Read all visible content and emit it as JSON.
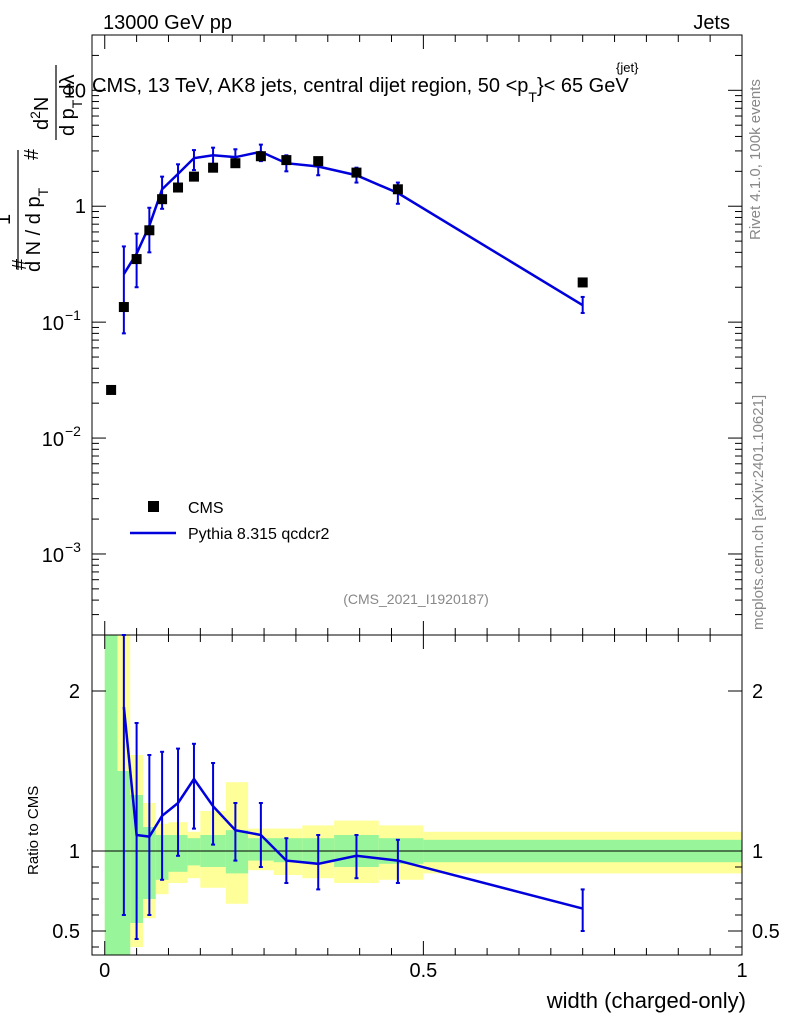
{
  "header": {
    "left": "13000 GeV pp",
    "right": "Jets",
    "title_main": "CMS, 13 TeV, AK8 jets, central dijet region, 50 <p",
    "title_sub": "T",
    "title_sup": "{jet}",
    "title_end": "}< 65 GeV"
  },
  "side": {
    "rivet": "Rivet 4.1.0,  100k events",
    "mcplots": "mcplots.cern.ch [arXiv:2401.10621]"
  },
  "analysis_id": "(CMS_2021_I1920187)",
  "ylabel_parts": {
    "hash": "#",
    "one": "1",
    "dN": "d N / d p",
    "T": "T",
    "d2N": "d",
    "two": "2",
    "N": "N",
    "dpT": "d p",
    "dlambda": "dλ"
  },
  "ratio_ylabel": "Ratio to CMS",
  "xlabel": "width (charged-only)",
  "legend": {
    "data": "CMS",
    "mc": "Pythia 8.315 qcdcr2"
  },
  "colors": {
    "mc": "#0000dd",
    "band_inner": "#99f599",
    "band_outer": "#ffff99",
    "data": "#000000"
  },
  "chart_data": [
    {
      "type": "scatter",
      "name": "main",
      "yscale": "log",
      "ylim": [
        0.0002,
        30
      ],
      "xlim": [
        -0.02,
        1.0
      ],
      "yticks": [
        {
          "value": 0.001,
          "base": "10",
          "exp": "−3"
        },
        {
          "value": 0.01,
          "base": "10",
          "exp": "−2"
        },
        {
          "value": 0.1,
          "base": "10",
          "exp": "−1"
        },
        {
          "value": 1,
          "label": "1"
        },
        {
          "value": 10,
          "label": "10"
        }
      ],
      "series": [
        {
          "name": "CMS",
          "x": [
            0.01,
            0.03,
            0.05,
            0.07,
            0.09,
            0.115,
            0.14,
            0.17,
            0.205,
            0.245,
            0.285,
            0.335,
            0.395,
            0.46,
            0.75
          ],
          "values": [
            0.026,
            0.135,
            0.35,
            0.62,
            1.15,
            1.45,
            1.8,
            2.15,
            2.35,
            2.7,
            2.5,
            2.45,
            1.95,
            1.4,
            0.22
          ]
        },
        {
          "name": "Pythia 8.315 qcdcr2",
          "x": [
            0.03,
            0.05,
            0.07,
            0.09,
            0.115,
            0.14,
            0.17,
            0.205,
            0.245,
            0.285,
            0.335,
            0.395,
            0.46,
            0.75
          ],
          "values": [
            0.26,
            0.39,
            0.68,
            1.4,
            1.9,
            2.6,
            2.75,
            2.65,
            2.95,
            2.35,
            2.2,
            1.85,
            1.3,
            0.14
          ],
          "err_lo": [
            0.08,
            0.2,
            0.4,
            0.95,
            1.4,
            2.05,
            2.25,
            2.2,
            2.45,
            2.0,
            1.85,
            1.6,
            1.05,
            0.12
          ],
          "err_hi": [
            0.45,
            0.58,
            0.97,
            1.8,
            2.3,
            3.05,
            3.2,
            3.1,
            3.4,
            2.75,
            2.55,
            2.15,
            1.6,
            0.165
          ]
        }
      ]
    },
    {
      "type": "line",
      "name": "ratio",
      "ylim": [
        0.35,
        2.35
      ],
      "xlim": [
        -0.02,
        1.0
      ],
      "xticks": [
        0,
        0.5,
        1
      ],
      "xtick_labels": [
        "0",
        "0.5",
        "1"
      ],
      "yticks": [
        0.5,
        1,
        2
      ],
      "ytick_labels": [
        "0.5",
        "1",
        "2"
      ],
      "bins": [
        {
          "x0": 0.0,
          "x1": 0.02,
          "in_lo": 0.35,
          "in_hi": 2.35,
          "out_lo": 0.35,
          "out_hi": 2.35
        },
        {
          "x0": 0.02,
          "x1": 0.04,
          "in_lo": 0.35,
          "in_hi": 1.5,
          "out_lo": 0.35,
          "out_hi": 2.35
        },
        {
          "x0": 0.04,
          "x1": 0.06,
          "in_lo": 0.55,
          "in_hi": 1.35,
          "out_lo": 0.4,
          "out_hi": 1.6
        },
        {
          "x0": 0.06,
          "x1": 0.08,
          "in_lo": 0.7,
          "in_hi": 1.15,
          "out_lo": 0.58,
          "out_hi": 1.3
        },
        {
          "x0": 0.08,
          "x1": 0.1,
          "in_lo": 0.82,
          "in_hi": 1.1,
          "out_lo": 0.73,
          "out_hi": 1.17
        },
        {
          "x0": 0.1,
          "x1": 0.13,
          "in_lo": 0.87,
          "in_hi": 1.1,
          "out_lo": 0.8,
          "out_hi": 1.18
        },
        {
          "x0": 0.13,
          "x1": 0.15,
          "in_lo": 0.91,
          "in_hi": 1.08,
          "out_lo": 0.83,
          "out_hi": 1.12
        },
        {
          "x0": 0.15,
          "x1": 0.19,
          "in_lo": 0.9,
          "in_hi": 1.1,
          "out_lo": 0.77,
          "out_hi": 1.25
        },
        {
          "x0": 0.19,
          "x1": 0.225,
          "in_lo": 0.86,
          "in_hi": 1.13,
          "out_lo": 0.67,
          "out_hi": 1.43
        },
        {
          "x0": 0.225,
          "x1": 0.265,
          "in_lo": 0.94,
          "in_hi": 1.08,
          "out_lo": 0.88,
          "out_hi": 1.14
        },
        {
          "x0": 0.265,
          "x1": 0.31,
          "in_lo": 0.93,
          "in_hi": 1.08,
          "out_lo": 0.85,
          "out_hi": 1.14
        },
        {
          "x0": 0.31,
          "x1": 0.36,
          "in_lo": 0.93,
          "in_hi": 1.08,
          "out_lo": 0.83,
          "out_hi": 1.16
        },
        {
          "x0": 0.36,
          "x1": 0.43,
          "in_lo": 0.9,
          "in_hi": 1.1,
          "out_lo": 0.8,
          "out_hi": 1.19
        },
        {
          "x0": 0.43,
          "x1": 0.5,
          "in_lo": 0.92,
          "in_hi": 1.08,
          "out_lo": 0.82,
          "out_hi": 1.16
        },
        {
          "x0": 0.5,
          "x1": 1.0,
          "in_lo": 0.93,
          "in_hi": 1.07,
          "out_lo": 0.86,
          "out_hi": 1.12
        }
      ],
      "series": [
        {
          "name": "Pythia 8.315 qcdcr2 / CMS",
          "x": [
            0.03,
            0.05,
            0.07,
            0.09,
            0.115,
            0.14,
            0.17,
            0.205,
            0.245,
            0.285,
            0.335,
            0.395,
            0.46,
            0.75
          ],
          "values": [
            1.9,
            1.1,
            1.09,
            1.22,
            1.3,
            1.45,
            1.28,
            1.13,
            1.1,
            0.94,
            0.92,
            0.97,
            0.94,
            0.64
          ],
          "err_lo": [
            0.6,
            0.45,
            0.6,
            0.82,
            0.97,
            1.14,
            1.04,
            0.94,
            0.9,
            0.8,
            0.76,
            0.83,
            0.8,
            0.5
          ],
          "err_hi": [
            2.35,
            1.8,
            1.6,
            1.62,
            1.64,
            1.67,
            1.55,
            1.3,
            1.3,
            1.08,
            1.1,
            1.1,
            1.07,
            0.76
          ]
        }
      ]
    }
  ]
}
